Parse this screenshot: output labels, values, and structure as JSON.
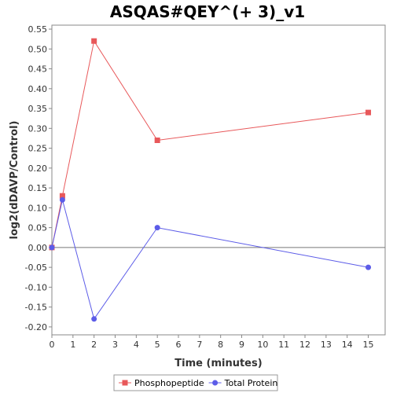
{
  "chart_data": {
    "type": "line",
    "title": "ASQAS#QEY^(+ 3)_v1",
    "xlabel": "Time (minutes)",
    "ylabel": "log2(dDAVP/Control)",
    "xlim": [
      0,
      15.8
    ],
    "ylim": [
      -0.22,
      0.56
    ],
    "xticks": [
      0,
      1,
      2,
      3,
      4,
      5,
      6,
      7,
      8,
      9,
      10,
      11,
      12,
      13,
      14,
      15
    ],
    "yticks": [
      -0.2,
      -0.15,
      -0.1,
      -0.05,
      0.0,
      0.05,
      0.1,
      0.15,
      0.2,
      0.25,
      0.3,
      0.35,
      0.4,
      0.45,
      0.5,
      0.55
    ],
    "xtick_labels": [
      "0",
      "1",
      "2",
      "3",
      "4",
      "5",
      "6",
      "7",
      "8",
      "9",
      "10",
      "11",
      "12",
      "13",
      "14",
      "15"
    ],
    "ytick_labels": [
      "-0.20",
      "-0.15",
      "-0.10",
      "-0.05",
      "0.00",
      "0.05",
      "0.10",
      "0.15",
      "0.20",
      "0.25",
      "0.30",
      "0.35",
      "0.40",
      "0.45",
      "0.50",
      "0.55"
    ],
    "zero_line": true,
    "grid": false,
    "legend_position": "bottom-center",
    "series": [
      {
        "name": "Phosphopeptide",
        "color": "#e8585a",
        "marker": "square",
        "x": [
          0,
          0.5,
          2,
          5,
          15
        ],
        "y": [
          0.0,
          0.13,
          0.52,
          0.27,
          0.34
        ]
      },
      {
        "name": "Total Protein",
        "color": "#5c5ce8",
        "marker": "circle",
        "x": [
          0,
          0.5,
          2,
          5,
          15
        ],
        "y": [
          0.0,
          0.12,
          -0.18,
          0.05,
          -0.05
        ]
      }
    ]
  }
}
